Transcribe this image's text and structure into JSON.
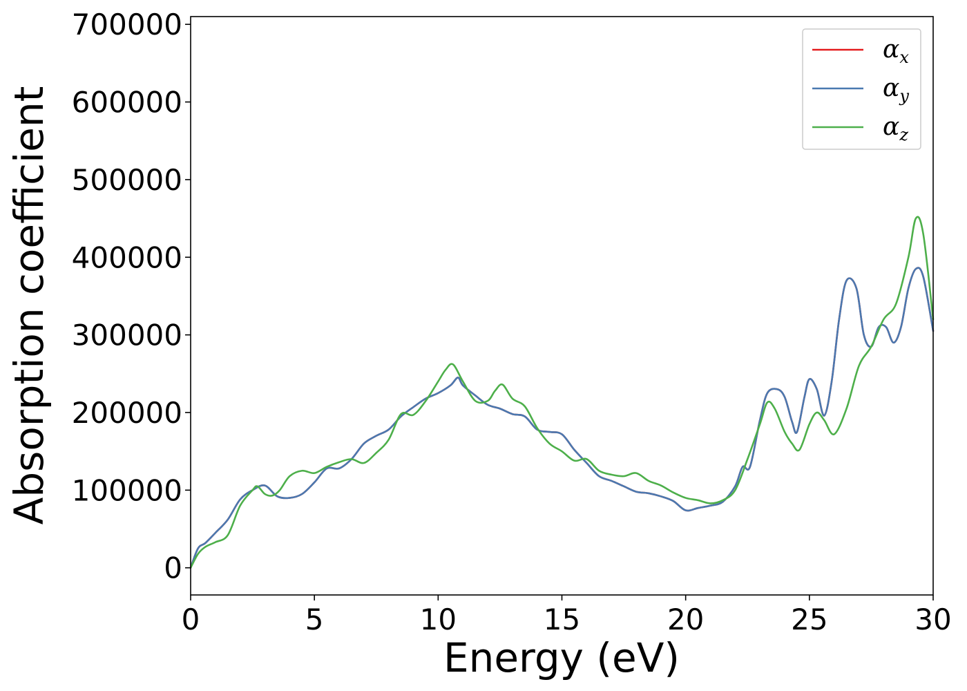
{
  "chart_data": {
    "type": "line",
    "xlabel": "Energy (eV)",
    "ylabel": "Absorption coefficient",
    "xlim": [
      0,
      30
    ],
    "ylim": [
      -35000,
      710000
    ],
    "x_ticks": [
      0,
      5,
      10,
      15,
      20,
      25,
      30
    ],
    "x_tick_labels": [
      "0",
      "5",
      "10",
      "15",
      "20",
      "25",
      "30"
    ],
    "y_ticks": [
      0,
      100000,
      200000,
      300000,
      400000,
      500000,
      600000,
      700000
    ],
    "y_tick_labels": [
      "0",
      "100000",
      "200000",
      "300000",
      "400000",
      "500000",
      "600000",
      "700000"
    ],
    "grid": false,
    "legend_position": "top-right",
    "series": [
      {
        "name": "α_x",
        "legend_base": "α",
        "legend_sub": "x",
        "color": "#e41a1c",
        "x": [
          0,
          0.3,
          0.6,
          1.0,
          1.5,
          2.0,
          2.5,
          3.0,
          3.5,
          4.0,
          4.5,
          5.0,
          5.5,
          6.0,
          6.5,
          7.0,
          7.5,
          8.0,
          8.5,
          9.0,
          9.5,
          10.0,
          10.5,
          10.8,
          11.0,
          11.5,
          12.0,
          12.5,
          13.0,
          13.5,
          14.0,
          14.5,
          15.0,
          15.5,
          16.0,
          16.5,
          17.0,
          17.5,
          18.0,
          18.5,
          19.0,
          19.5,
          20.0,
          20.5,
          21.0,
          21.5,
          22.0,
          22.3,
          22.6,
          23.0,
          23.3,
          23.7,
          24.0,
          24.3,
          24.5,
          24.8,
          25.0,
          25.3,
          25.6,
          25.9,
          26.2,
          26.5,
          26.9,
          27.2,
          27.5,
          27.8,
          28.1,
          28.4,
          28.7,
          29.0,
          29.3,
          29.6,
          30.0
        ],
        "values": [
          0,
          25000,
          32000,
          45000,
          62000,
          88000,
          100000,
          106000,
          92000,
          90000,
          95000,
          110000,
          128000,
          128000,
          140000,
          160000,
          170000,
          178000,
          195000,
          207000,
          218000,
          225000,
          235000,
          245000,
          235000,
          222000,
          210000,
          205000,
          198000,
          195000,
          178000,
          175000,
          172000,
          152000,
          135000,
          118000,
          112000,
          105000,
          98000,
          96000,
          92000,
          86000,
          74000,
          77000,
          80000,
          85000,
          105000,
          130000,
          130000,
          190000,
          225000,
          230000,
          220000,
          188000,
          175000,
          220000,
          243000,
          230000,
          196000,
          240000,
          320000,
          370000,
          360000,
          300000,
          285000,
          310000,
          310000,
          290000,
          310000,
          360000,
          385000,
          375000,
          305000
        ]
      },
      {
        "name": "α_y",
        "legend_base": "α",
        "legend_sub": "y",
        "color": "#4a79b0",
        "x": [
          0,
          0.3,
          0.6,
          1.0,
          1.5,
          2.0,
          2.5,
          3.0,
          3.5,
          4.0,
          4.5,
          5.0,
          5.5,
          6.0,
          6.5,
          7.0,
          7.5,
          8.0,
          8.5,
          9.0,
          9.5,
          10.0,
          10.5,
          10.8,
          11.0,
          11.5,
          12.0,
          12.5,
          13.0,
          13.5,
          14.0,
          14.5,
          15.0,
          15.5,
          16.0,
          16.5,
          17.0,
          17.5,
          18.0,
          18.5,
          19.0,
          19.5,
          20.0,
          20.5,
          21.0,
          21.5,
          22.0,
          22.3,
          22.6,
          23.0,
          23.3,
          23.7,
          24.0,
          24.3,
          24.5,
          24.8,
          25.0,
          25.3,
          25.6,
          25.9,
          26.2,
          26.5,
          26.9,
          27.2,
          27.5,
          27.8,
          28.1,
          28.4,
          28.7,
          29.0,
          29.3,
          29.6,
          30.0
        ],
        "values": [
          0,
          25000,
          32000,
          45000,
          62000,
          88000,
          100000,
          106000,
          92000,
          90000,
          95000,
          110000,
          128000,
          128000,
          140000,
          160000,
          170000,
          178000,
          195000,
          207000,
          218000,
          225000,
          235000,
          245000,
          235000,
          222000,
          210000,
          205000,
          198000,
          195000,
          178000,
          175000,
          172000,
          152000,
          135000,
          118000,
          112000,
          105000,
          98000,
          96000,
          92000,
          86000,
          74000,
          77000,
          80000,
          85000,
          105000,
          130000,
          130000,
          190000,
          225000,
          230000,
          220000,
          188000,
          175000,
          220000,
          243000,
          230000,
          196000,
          240000,
          320000,
          370000,
          360000,
          300000,
          285000,
          310000,
          310000,
          290000,
          310000,
          360000,
          385000,
          375000,
          305000
        ]
      },
      {
        "name": "α_z",
        "legend_base": "α",
        "legend_sub": "z",
        "color": "#4daf4a",
        "x": [
          0,
          0.3,
          0.6,
          1.0,
          1.5,
          2.0,
          2.5,
          2.7,
          3.0,
          3.3,
          3.6,
          4.0,
          4.5,
          5.0,
          5.5,
          6.0,
          6.5,
          7.0,
          7.5,
          8.0,
          8.5,
          9.0,
          9.5,
          10.0,
          10.3,
          10.6,
          11.0,
          11.5,
          12.0,
          12.3,
          12.6,
          13.0,
          13.5,
          14.0,
          14.5,
          15.0,
          15.5,
          16.0,
          16.5,
          17.0,
          17.5,
          18.0,
          18.5,
          19.0,
          19.5,
          20.0,
          20.5,
          21.0,
          21.5,
          22.0,
          22.5,
          23.0,
          23.3,
          23.6,
          24.0,
          24.3,
          24.6,
          25.0,
          25.3,
          25.6,
          26.0,
          26.5,
          27.0,
          27.5,
          28.0,
          28.5,
          29.0,
          29.3,
          29.6,
          30.0
        ],
        "values": [
          0,
          18000,
          27000,
          33000,
          42000,
          80000,
          100000,
          105000,
          95000,
          93000,
          100000,
          118000,
          125000,
          122000,
          130000,
          136000,
          140000,
          135000,
          148000,
          165000,
          198000,
          197000,
          215000,
          240000,
          255000,
          262000,
          240000,
          215000,
          215000,
          228000,
          236000,
          218000,
          208000,
          180000,
          160000,
          150000,
          138000,
          140000,
          125000,
          120000,
          118000,
          122000,
          112000,
          106000,
          97000,
          90000,
          87000,
          83000,
          87000,
          100000,
          140000,
          185000,
          213000,
          205000,
          175000,
          160000,
          152000,
          185000,
          200000,
          190000,
          172000,
          205000,
          260000,
          285000,
          320000,
          340000,
          400000,
          450000,
          430000,
          320000
        ]
      }
    ]
  }
}
